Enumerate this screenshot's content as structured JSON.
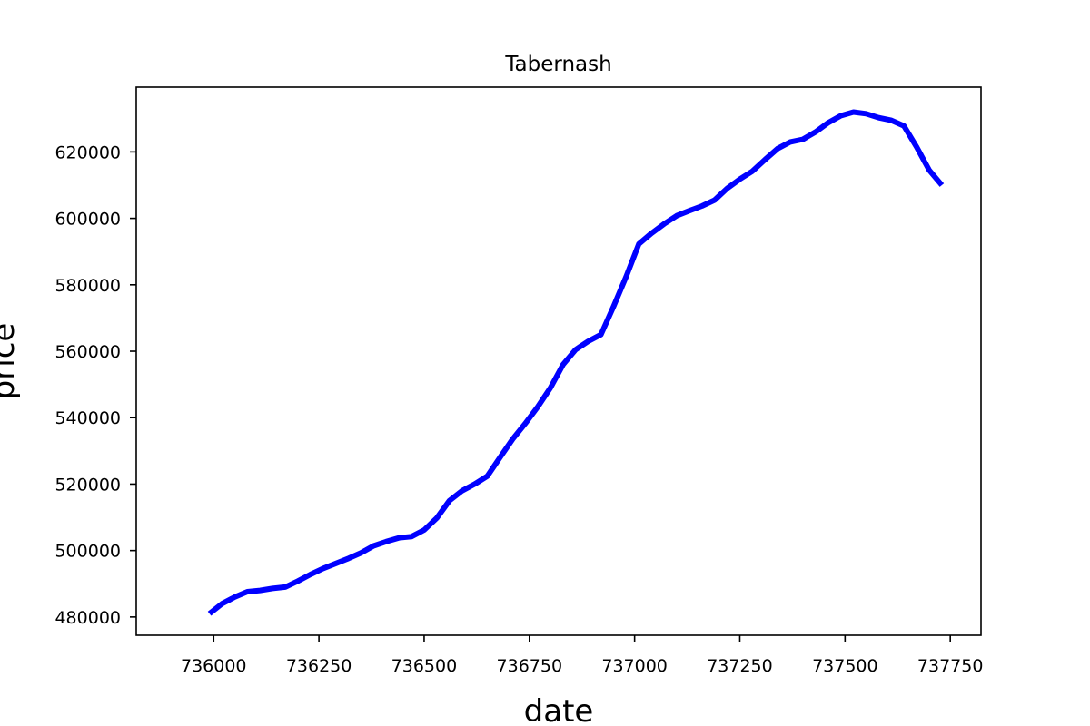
{
  "chart_data": {
    "type": "line",
    "title": "Tabernash",
    "xlabel": "date",
    "ylabel": "price",
    "xlim": [
      735816,
      737823
    ],
    "ylim": [
      474500,
      639500
    ],
    "grid": false,
    "x_ticks": [
      736000,
      736250,
      736500,
      736750,
      737000,
      737250,
      737500,
      737750
    ],
    "y_ticks": [
      480000,
      500000,
      520000,
      540000,
      560000,
      580000,
      600000,
      620000
    ],
    "series": [
      {
        "color": "#0000ff",
        "x": [
          735990,
          736020,
          736050,
          736080,
          736110,
          736140,
          736170,
          736200,
          736230,
          736260,
          736290,
          736320,
          736350,
          736380,
          736410,
          736440,
          736470,
          736500,
          736530,
          736560,
          736590,
          736620,
          736650,
          736680,
          736710,
          736740,
          736770,
          736800,
          736830,
          736860,
          736890,
          736920,
          736950,
          736980,
          737010,
          737040,
          737070,
          737100,
          737130,
          737160,
          737190,
          737220,
          737250,
          737280,
          737310,
          737340,
          737370,
          737400,
          737430,
          737460,
          737490,
          737520,
          737550,
          737580,
          737610,
          737640,
          737670,
          737700,
          737730
        ],
        "y": [
          481000,
          484000,
          486000,
          487600,
          488000,
          488600,
          489000,
          490800,
          492800,
          494600,
          496100,
          497600,
          499300,
          501400,
          502700,
          503800,
          504200,
          506200,
          509800,
          515000,
          518000,
          520000,
          522400,
          528000,
          533500,
          538200,
          543300,
          549000,
          556000,
          560500,
          563000,
          565000,
          573500,
          582500,
          592300,
          595500,
          598300,
          600800,
          602300,
          603700,
          605500,
          609000,
          611800,
          614200,
          617700,
          621000,
          623000,
          623800,
          626000,
          628800,
          630900,
          632000,
          631500,
          630300,
          629500,
          627800,
          621500,
          614500,
          610000
        ]
      }
    ]
  }
}
